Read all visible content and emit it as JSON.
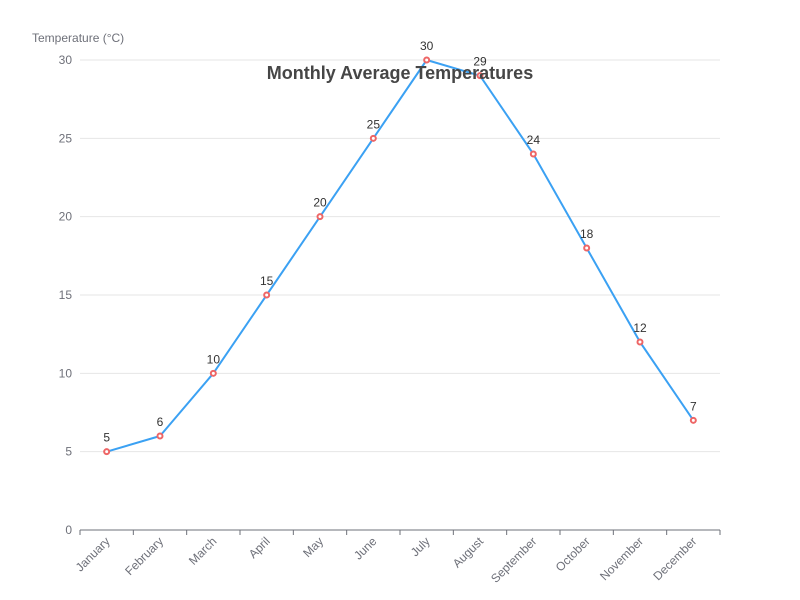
{
  "chart_data": {
    "type": "line",
    "title": "Monthly Average Temperatures",
    "xlabel": "",
    "ylabel": "Temperature (°C)",
    "categories": [
      "January",
      "February",
      "March",
      "April",
      "May",
      "June",
      "July",
      "August",
      "September",
      "October",
      "November",
      "December"
    ],
    "series": [
      {
        "values": [
          5,
          6,
          10,
          15,
          20,
          25,
          30,
          29,
          24,
          18,
          12,
          7
        ]
      }
    ],
    "ylim": [
      0,
      30
    ],
    "yticks": [
      0,
      5,
      10,
      15,
      20,
      25,
      30
    ],
    "grid": true,
    "data_labels": true,
    "colors": {
      "line": "#3ba1f3",
      "point_border": "#ee6666"
    }
  }
}
